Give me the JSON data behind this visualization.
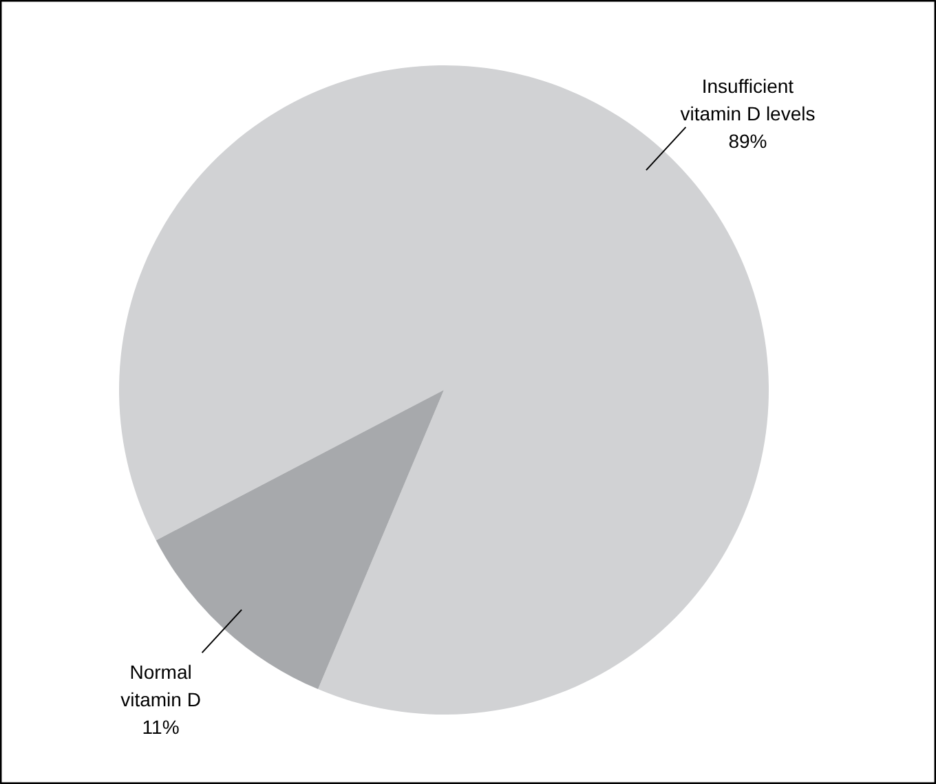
{
  "chart_data": {
    "type": "pie",
    "categories": [
      "Insufficient vitamin D levels",
      "Normal vitamin D"
    ],
    "values": [
      89,
      11
    ],
    "colors": [
      "#d1d2d4",
      "#a7a9ac"
    ],
    "value_labels": [
      "89%",
      "11%"
    ]
  }
}
